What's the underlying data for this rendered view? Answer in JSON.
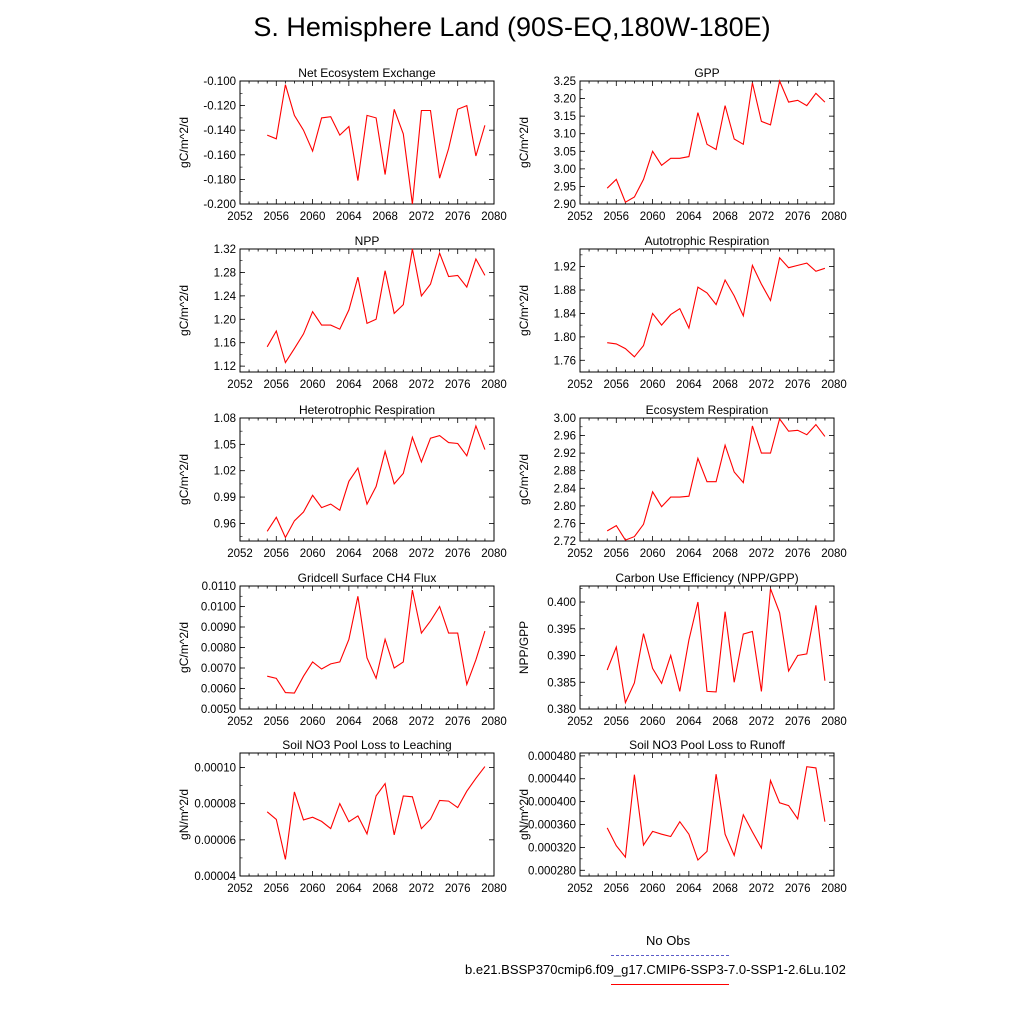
{
  "page": {
    "title": "S. Hemisphere Land (90S-EQ,180W-180E)"
  },
  "colors": {
    "series": "#ff0000",
    "obs": "#5a5ac8"
  },
  "legend": {
    "obs_label": "No Obs",
    "case_label": "b.e21.BSSP370cmip6.f09_g17.CMIP6-SSP3-7.0-SSP1-2.6Lu.102"
  },
  "chart_data": [
    {
      "type": "line",
      "title": "Net Ecosystem Exchange",
      "ylabel": "gC/m^2/d",
      "xlim": [
        2052,
        2080
      ],
      "ylim": [
        -0.2,
        -0.1
      ],
      "xticks": [
        "2052",
        "2056",
        "2060",
        "2064",
        "2068",
        "2072",
        "2076",
        "2080"
      ],
      "yticks": [
        "-0.100",
        "-0.120",
        "-0.140",
        "-0.160",
        "-0.180",
        "-0.200"
      ],
      "x": [
        2055,
        2056,
        2057,
        2058,
        2059,
        2060,
        2061,
        2062,
        2063,
        2064,
        2065,
        2066,
        2067,
        2068,
        2069,
        2070,
        2071,
        2072,
        2073,
        2074,
        2075,
        2076,
        2077,
        2078,
        2079
      ],
      "values": [
        -0.144,
        -0.147,
        -0.103,
        -0.128,
        -0.14,
        -0.157,
        -0.13,
        -0.129,
        -0.144,
        -0.137,
        -0.181,
        -0.128,
        -0.13,
        -0.176,
        -0.123,
        -0.143,
        -0.2,
        -0.124,
        -0.124,
        -0.179,
        -0.155,
        -0.123,
        -0.12,
        -0.161,
        -0.136
      ]
    },
    {
      "type": "line",
      "title": "GPP",
      "ylabel": "gC/m^2/d",
      "xlim": [
        2052,
        2080
      ],
      "ylim": [
        2.9,
        3.25
      ],
      "xticks": [
        "2052",
        "2056",
        "2060",
        "2064",
        "2068",
        "2072",
        "2076",
        "2080"
      ],
      "yticks": [
        "3.25",
        "3.20",
        "3.15",
        "3.10",
        "3.05",
        "3.00",
        "2.95",
        "2.90"
      ],
      "x": [
        2055,
        2056,
        2057,
        2058,
        2059,
        2060,
        2061,
        2062,
        2063,
        2064,
        2065,
        2066,
        2067,
        2068,
        2069,
        2070,
        2071,
        2072,
        2073,
        2074,
        2075,
        2076,
        2077,
        2078,
        2079
      ],
      "values": [
        2.945,
        2.97,
        2.905,
        2.92,
        2.97,
        3.05,
        3.01,
        3.03,
        3.03,
        3.035,
        3.16,
        3.07,
        3.055,
        3.18,
        3.085,
        3.07,
        3.245,
        3.135,
        3.125,
        3.25,
        3.19,
        3.195,
        3.18,
        3.215,
        3.19
      ]
    },
    {
      "type": "line",
      "title": "NPP",
      "ylabel": "gC/m^2/d",
      "xlim": [
        2052,
        2080
      ],
      "ylim": [
        1.11,
        1.32
      ],
      "xticks": [
        "2052",
        "2056",
        "2060",
        "2064",
        "2068",
        "2072",
        "2076",
        "2080"
      ],
      "yticks": [
        "1.32",
        "1.28",
        "1.24",
        "1.20",
        "1.16",
        "1.12"
      ],
      "x": [
        2055,
        2056,
        2057,
        2058,
        2059,
        2060,
        2061,
        2062,
        2063,
        2064,
        2065,
        2066,
        2067,
        2068,
        2069,
        2070,
        2071,
        2072,
        2073,
        2074,
        2075,
        2076,
        2077,
        2078,
        2079
      ],
      "values": [
        1.153,
        1.18,
        1.126,
        1.15,
        1.175,
        1.213,
        1.19,
        1.19,
        1.183,
        1.216,
        1.272,
        1.193,
        1.2,
        1.283,
        1.21,
        1.225,
        1.32,
        1.24,
        1.26,
        1.313,
        1.273,
        1.275,
        1.255,
        1.303,
        1.275
      ]
    },
    {
      "type": "line",
      "title": "Autotrophic Respiration",
      "ylabel": "gC/m^2/d",
      "xlim": [
        2052,
        2080
      ],
      "ylim": [
        1.74,
        1.95
      ],
      "xticks": [
        "2052",
        "2056",
        "2060",
        "2064",
        "2068",
        "2072",
        "2076",
        "2080"
      ],
      "yticks": [
        "1.92",
        "1.88",
        "1.84",
        "1.80",
        "1.76"
      ],
      "x": [
        2055,
        2056,
        2057,
        2058,
        2059,
        2060,
        2061,
        2062,
        2063,
        2064,
        2065,
        2066,
        2067,
        2068,
        2069,
        2070,
        2071,
        2072,
        2073,
        2074,
        2075,
        2076,
        2077,
        2078,
        2079
      ],
      "values": [
        1.79,
        1.788,
        1.78,
        1.766,
        1.785,
        1.84,
        1.82,
        1.838,
        1.848,
        1.815,
        1.885,
        1.875,
        1.855,
        1.897,
        1.87,
        1.836,
        1.922,
        1.89,
        1.862,
        1.935,
        1.918,
        1.922,
        1.926,
        1.912,
        1.917
      ]
    },
    {
      "type": "line",
      "title": "Heterotrophic Respiration",
      "ylabel": "gC/m^2/d",
      "xlim": [
        2052,
        2080
      ],
      "ylim": [
        0.94,
        1.08
      ],
      "xticks": [
        "2052",
        "2056",
        "2060",
        "2064",
        "2068",
        "2072",
        "2076",
        "2080"
      ],
      "yticks": [
        "1.08",
        "1.05",
        "1.02",
        "0.99",
        "0.96"
      ],
      "x": [
        2055,
        2056,
        2057,
        2058,
        2059,
        2060,
        2061,
        2062,
        2063,
        2064,
        2065,
        2066,
        2067,
        2068,
        2069,
        2070,
        2071,
        2072,
        2073,
        2074,
        2075,
        2076,
        2077,
        2078,
        2079
      ],
      "values": [
        0.951,
        0.967,
        0.944,
        0.963,
        0.973,
        0.992,
        0.978,
        0.982,
        0.975,
        1.008,
        1.023,
        0.982,
        1.002,
        1.042,
        1.005,
        1.017,
        1.058,
        1.03,
        1.057,
        1.06,
        1.052,
        1.051,
        1.037,
        1.071,
        1.044
      ]
    },
    {
      "type": "line",
      "title": "Ecosystem Respiration",
      "ylabel": "gC/m^2/d",
      "xlim": [
        2052,
        2080
      ],
      "ylim": [
        2.72,
        3.0
      ],
      "xticks": [
        "2052",
        "2056",
        "2060",
        "2064",
        "2068",
        "2072",
        "2076",
        "2080"
      ],
      "yticks": [
        "3.00",
        "2.96",
        "2.92",
        "2.88",
        "2.84",
        "2.80",
        "2.76",
        "2.72"
      ],
      "x": [
        2055,
        2056,
        2057,
        2058,
        2059,
        2060,
        2061,
        2062,
        2063,
        2064,
        2065,
        2066,
        2067,
        2068,
        2069,
        2070,
        2071,
        2072,
        2073,
        2074,
        2075,
        2076,
        2077,
        2078,
        2079
      ],
      "values": [
        2.743,
        2.755,
        2.722,
        2.73,
        2.758,
        2.832,
        2.798,
        2.82,
        2.82,
        2.822,
        2.908,
        2.855,
        2.855,
        2.938,
        2.877,
        2.853,
        2.982,
        2.92,
        2.92,
        2.998,
        2.97,
        2.972,
        2.962,
        2.985,
        2.958
      ]
    },
    {
      "type": "line",
      "title": "Gridcell Surface CH4 Flux",
      "ylabel": "gC/m^2/d",
      "xlim": [
        2052,
        2080
      ],
      "ylim": [
        0.005,
        0.011
      ],
      "xticks": [
        "2052",
        "2056",
        "2060",
        "2064",
        "2068",
        "2072",
        "2076",
        "2080"
      ],
      "yticks": [
        "0.0110",
        "0.0100",
        "0.0090",
        "0.0080",
        "0.0070",
        "0.0060",
        "0.0050"
      ],
      "x": [
        2055,
        2056,
        2057,
        2058,
        2059,
        2060,
        2061,
        2062,
        2063,
        2064,
        2065,
        2066,
        2067,
        2068,
        2069,
        2070,
        2071,
        2072,
        2073,
        2074,
        2075,
        2076,
        2077,
        2078,
        2079
      ],
      "values": [
        0.0066,
        0.0065,
        0.0058,
        0.00578,
        0.0066,
        0.0073,
        0.00695,
        0.0072,
        0.0073,
        0.0084,
        0.0105,
        0.0075,
        0.0065,
        0.0084,
        0.007,
        0.0073,
        0.0108,
        0.0087,
        0.0093,
        0.01,
        0.0087,
        0.0087,
        0.0062,
        0.0074,
        0.0088
      ]
    },
    {
      "type": "line",
      "title": "Carbon Use Efficiency (NPP/GPP)",
      "ylabel": "NPP/GPP",
      "xlim": [
        2052,
        2080
      ],
      "ylim": [
        0.38,
        0.403
      ],
      "xticks": [
        "2052",
        "2056",
        "2060",
        "2064",
        "2068",
        "2072",
        "2076",
        "2080"
      ],
      "yticks": [
        "0.400",
        "0.395",
        "0.390",
        "0.385",
        "0.380"
      ],
      "x": [
        2055,
        2056,
        2057,
        2058,
        2059,
        2060,
        2061,
        2062,
        2063,
        2064,
        2065,
        2066,
        2067,
        2068,
        2069,
        2070,
        2071,
        2072,
        2073,
        2074,
        2075,
        2076,
        2077,
        2078,
        2079
      ],
      "values": [
        0.3873,
        0.3916,
        0.3812,
        0.3849,
        0.3941,
        0.3876,
        0.3848,
        0.39,
        0.3833,
        0.3929,
        0.4,
        0.3833,
        0.3832,
        0.3982,
        0.385,
        0.394,
        0.3945,
        0.3833,
        0.4025,
        0.398,
        0.3871,
        0.39,
        0.3903,
        0.3994,
        0.3853
      ]
    },
    {
      "type": "line",
      "title": "Soil NO3 Pool Loss to Leaching",
      "ylabel": "gN/m^2/d",
      "xlim": [
        2052,
        2080
      ],
      "ylim": [
        4e-05,
        0.000108
      ],
      "xticks": [
        "2052",
        "2056",
        "2060",
        "2064",
        "2068",
        "2072",
        "2076",
        "2080"
      ],
      "yticks": [
        "0.00010",
        "0.00008",
        "0.00006",
        "0.00004"
      ],
      "x": [
        2055,
        2056,
        2057,
        2058,
        2059,
        2060,
        2061,
        2062,
        2063,
        2064,
        2065,
        2066,
        2067,
        2068,
        2069,
        2070,
        2071,
        2072,
        2073,
        2074,
        2075,
        2076,
        2077,
        2078,
        2079
      ],
      "values": [
        7.55e-05,
        7.13e-05,
        4.92e-05,
        8.65e-05,
        7.1e-05,
        7.25e-05,
        7.02e-05,
        6.62e-05,
        8e-05,
        7e-05,
        7.32e-05,
        6.33e-05,
        8.43e-05,
        9.11e-05,
        6.27e-05,
        8.42e-05,
        8.38e-05,
        6.62e-05,
        7.14e-05,
        8.18e-05,
        8.14e-05,
        7.78e-05,
        8.69e-05,
        9.4e-05,
        0.0001005
      ]
    },
    {
      "type": "line",
      "title": "Soil NO3 Pool Loss to Runoff",
      "ylabel": "gN/m^2/d",
      "xlim": [
        2052,
        2080
      ],
      "ylim": [
        0.00027,
        0.000485
      ],
      "xticks": [
        "2052",
        "2056",
        "2060",
        "2064",
        "2068",
        "2072",
        "2076",
        "2080"
      ],
      "yticks": [
        "0.000480",
        "0.000440",
        "0.000400",
        "0.000360",
        "0.000320",
        "0.000280"
      ],
      "x": [
        2055,
        2056,
        2057,
        2058,
        2059,
        2060,
        2061,
        2062,
        2063,
        2064,
        2065,
        2066,
        2067,
        2068,
        2069,
        2070,
        2071,
        2072,
        2073,
        2074,
        2075,
        2076,
        2077,
        2078,
        2079
      ],
      "values": [
        0.000354,
        0.000323,
        0.000303,
        0.000447,
        0.000324,
        0.000348,
        0.000343,
        0.000339,
        0.000365,
        0.000343,
        0.000298,
        0.000313,
        0.000448,
        0.000343,
        0.000306,
        0.000377,
        0.000347,
        0.000319,
        0.000437,
        0.000398,
        0.000393,
        0.00037,
        0.000461,
        0.000459,
        0.000365
      ]
    }
  ]
}
